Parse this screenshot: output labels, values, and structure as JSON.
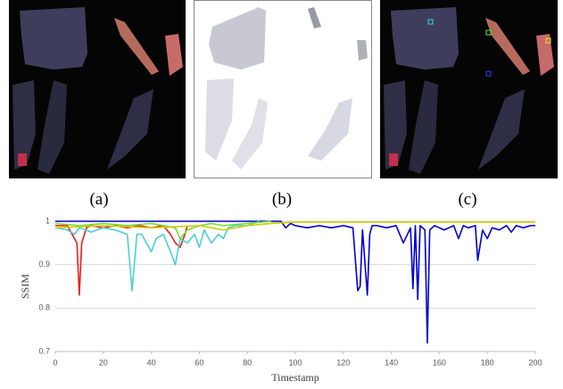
{
  "panels": [
    {
      "label": "(a)"
    },
    {
      "label": "(b)"
    },
    {
      "label": "(c)"
    }
  ],
  "chart_data": {
    "type": "line",
    "x_label": "Timestamp",
    "y_label": "SSIM",
    "xlim": [
      0,
      200
    ],
    "xticks": [
      0,
      20,
      40,
      60,
      80,
      100,
      120,
      140,
      160,
      180,
      200
    ],
    "ylim": [
      0.7,
      1
    ],
    "yticks": [
      0.7,
      0.8,
      0.9,
      1
    ],
    "grid": true,
    "series": [
      {
        "color": "#0000cc",
        "x": [
          0,
          20,
          40,
          60,
          80,
          94,
          96,
          98,
          100,
          105,
          110,
          115,
          120,
          124,
          126,
          127,
          128,
          130,
          131,
          132,
          134,
          138,
          142,
          145,
          148,
          149,
          150,
          151,
          152,
          154,
          155,
          156,
          158,
          162,
          166,
          168,
          170,
          172,
          175,
          176,
          178,
          180,
          182,
          185,
          188,
          190,
          192,
          195,
          198,
          200
        ],
        "values": [
          1,
          1,
          1,
          1,
          1,
          1,
          0.985,
          0.995,
          0.99,
          0.985,
          0.99,
          0.985,
          0.99,
          0.985,
          0.84,
          0.85,
          0.98,
          0.83,
          0.97,
          0.99,
          0.99,
          0.985,
          0.99,
          0.95,
          0.985,
          0.845,
          0.99,
          0.82,
          0.99,
          0.98,
          0.72,
          0.98,
          0.99,
          0.98,
          0.99,
          0.96,
          0.99,
          0.985,
          0.99,
          0.91,
          0.98,
          0.96,
          0.985,
          0.98,
          0.99,
          0.975,
          0.99,
          0.985,
          0.99,
          0.99
        ]
      },
      {
        "color": "#ee1c1c",
        "x": [
          0,
          5,
          9,
          10,
          11,
          13,
          15,
          20,
          25,
          30,
          35,
          40,
          45,
          48,
          50,
          52,
          54,
          55
        ],
        "values": [
          0.99,
          0.99,
          0.95,
          0.83,
          0.95,
          0.985,
          0.99,
          0.985,
          0.99,
          0.985,
          0.99,
          0.985,
          0.99,
          0.97,
          0.95,
          0.94,
          0.97,
          0.99
        ]
      },
      {
        "color": "#4dcfcf",
        "x": [
          0,
          5,
          8,
          10,
          15,
          20,
          25,
          30,
          32,
          34,
          36,
          40,
          42,
          45,
          48,
          50,
          52,
          55,
          58,
          60,
          62,
          65,
          68,
          70,
          72,
          75,
          80,
          85
        ],
        "values": [
          0.985,
          0.98,
          0.97,
          0.985,
          0.975,
          0.985,
          0.98,
          0.97,
          0.84,
          0.97,
          0.97,
          0.93,
          0.96,
          0.97,
          0.93,
          0.9,
          0.96,
          0.95,
          0.97,
          0.94,
          0.98,
          0.95,
          0.97,
          0.96,
          0.985,
          0.99,
          0.99,
          1
        ]
      },
      {
        "color": "#77dd33",
        "x": [
          0,
          10,
          20,
          30,
          40,
          50,
          52,
          55,
          60,
          65,
          70,
          80,
          90
        ],
        "values": [
          0.995,
          0.99,
          0.995,
          0.99,
          0.995,
          0.985,
          0.96,
          0.98,
          0.99,
          0.995,
          0.99,
          0.995,
          1
        ]
      },
      {
        "color": "#cccc00",
        "x": [
          0,
          20,
          40,
          60,
          70,
          80,
          90,
          100,
          200
        ],
        "values": [
          0.985,
          0.99,
          0.985,
          0.99,
          0.98,
          0.99,
          0.995,
          0.998,
          0.998
        ]
      }
    ]
  }
}
